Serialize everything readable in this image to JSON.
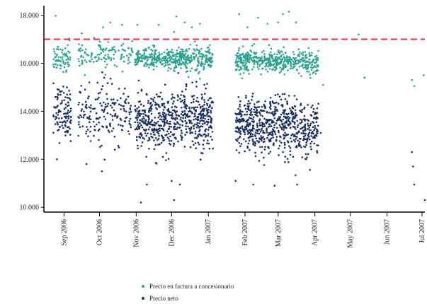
{
  "chart_data": {
    "type": "scatter",
    "title": "",
    "xlabel": "",
    "ylabel": "",
    "x_tick_labels": [
      "Sep 2006",
      "Oct 2006",
      "Nov 2006",
      "Dec 2006",
      "Jan 2007",
      "Feb 2007",
      "Mar 2007",
      "Apr 2007",
      "May 2007",
      "Jun 2007",
      "Jul 2007"
    ],
    "y_tick_labels": [
      "10.000",
      "12.000",
      "14.000",
      "16.000",
      "18.000"
    ],
    "ylim": [
      9800,
      18400
    ],
    "y_ticks": [
      10000,
      12000,
      14000,
      16000,
      18000
    ],
    "reference_line": {
      "y": 17000,
      "color": "#e0303c",
      "style": "dashed"
    },
    "legend_position": "bottom",
    "series": [
      {
        "name": "Precio en factura a concesionario",
        "color": "#2aa48e",
        "clusters": [
          {
            "date_start": "2006-08-23",
            "date_end": "2006-09-07",
            "center": 16300,
            "spread": 280,
            "count": 70
          },
          {
            "date_start": "2006-09-13",
            "date_end": "2006-10-05",
            "center": 16250,
            "spread": 300,
            "count": 60
          },
          {
            "date_start": "2006-10-05",
            "date_end": "2006-10-29",
            "center": 16300,
            "spread": 320,
            "count": 60
          },
          {
            "date_start": "2006-10-31",
            "date_end": "2006-11-30",
            "center": 16200,
            "spread": 220,
            "count": 200
          },
          {
            "date_start": "2006-11-30",
            "date_end": "2007-01-05",
            "center": 16150,
            "spread": 240,
            "count": 250
          },
          {
            "date_start": "2007-01-24",
            "date_end": "2007-02-16",
            "center": 16150,
            "spread": 230,
            "count": 170
          },
          {
            "date_start": "2007-02-16",
            "date_end": "2007-03-15",
            "center": 16100,
            "spread": 240,
            "count": 190
          },
          {
            "date_start": "2007-03-15",
            "date_end": "2007-04-04",
            "center": 16050,
            "spread": 220,
            "count": 120
          }
        ],
        "outliers": [
          [
            "2006-08-25",
            17980
          ],
          [
            "2006-09-16",
            17250
          ],
          [
            "2006-10-04",
            17500
          ],
          [
            "2006-10-10",
            17700
          ],
          [
            "2006-10-20",
            17600
          ],
          [
            "2006-11-02",
            17600
          ],
          [
            "2006-11-20",
            17600
          ],
          [
            "2006-12-03",
            17300
          ],
          [
            "2006-12-05",
            17950
          ],
          [
            "2006-12-12",
            17700
          ],
          [
            "2006-12-18",
            17500
          ],
          [
            "2006-12-25",
            17650
          ],
          [
            "2007-01-27",
            18050
          ],
          [
            "2007-02-03",
            17500
          ],
          [
            "2007-02-12",
            17900
          ],
          [
            "2007-02-20",
            17650
          ],
          [
            "2007-03-01",
            17700
          ],
          [
            "2007-03-05",
            18050
          ],
          [
            "2007-03-10",
            18150
          ],
          [
            "2007-03-16",
            17700
          ],
          [
            "2007-04-08",
            15100
          ],
          [
            "2007-05-08",
            17200
          ],
          [
            "2007-05-13",
            15400
          ],
          [
            "2007-06-22",
            15300
          ],
          [
            "2007-06-24",
            15050
          ],
          [
            "2007-07-02",
            15500
          ]
        ]
      },
      {
        "name": "Precio neto",
        "color": "#1b2e63",
        "clusters": [
          {
            "date_start": "2006-08-23",
            "date_end": "2006-09-07",
            "center": 14000,
            "spread": 550,
            "count": 110
          },
          {
            "date_start": "2006-09-13",
            "date_end": "2006-10-05",
            "center": 13900,
            "spread": 600,
            "count": 90
          },
          {
            "date_start": "2006-10-05",
            "date_end": "2006-10-29",
            "center": 13900,
            "spread": 550,
            "count": 90
          },
          {
            "date_start": "2006-10-31",
            "date_end": "2006-11-30",
            "center": 13500,
            "spread": 580,
            "count": 280
          },
          {
            "date_start": "2006-11-30",
            "date_end": "2007-01-05",
            "center": 13700,
            "spread": 600,
            "count": 340
          },
          {
            "date_start": "2007-01-24",
            "date_end": "2007-02-16",
            "center": 13400,
            "spread": 560,
            "count": 250
          },
          {
            "date_start": "2007-02-16",
            "date_end": "2007-03-15",
            "center": 13400,
            "spread": 580,
            "count": 270
          },
          {
            "date_start": "2007-03-15",
            "date_end": "2007-04-04",
            "center": 13200,
            "spread": 560,
            "count": 170
          }
        ],
        "outliers": [
          [
            "2006-08-26",
            12000
          ],
          [
            "2006-09-20",
            11800
          ],
          [
            "2006-10-03",
            11500
          ],
          [
            "2006-10-14",
            12400
          ],
          [
            "2006-11-10",
            10950
          ],
          [
            "2006-11-05",
            10200
          ],
          [
            "2006-12-01",
            11100
          ],
          [
            "2006-12-03",
            10300
          ],
          [
            "2006-12-08",
            10950
          ],
          [
            "2007-01-24",
            11100
          ],
          [
            "2007-02-08",
            10950
          ],
          [
            "2007-02-26",
            10900
          ],
          [
            "2007-03-17",
            10950
          ],
          [
            "2007-04-06",
            13100
          ],
          [
            "2007-05-13",
            15400
          ],
          [
            "2007-06-22",
            12300
          ],
          [
            "2007-06-23",
            11700
          ],
          [
            "2007-06-24",
            10950
          ],
          [
            "2007-07-03",
            10300
          ]
        ]
      }
    ]
  },
  "legend": {
    "items": [
      {
        "label": "Precio en factura a concesionario",
        "color": "#2aa48e"
      },
      {
        "label": "Precio neto",
        "color": "#1b2e63"
      }
    ]
  }
}
